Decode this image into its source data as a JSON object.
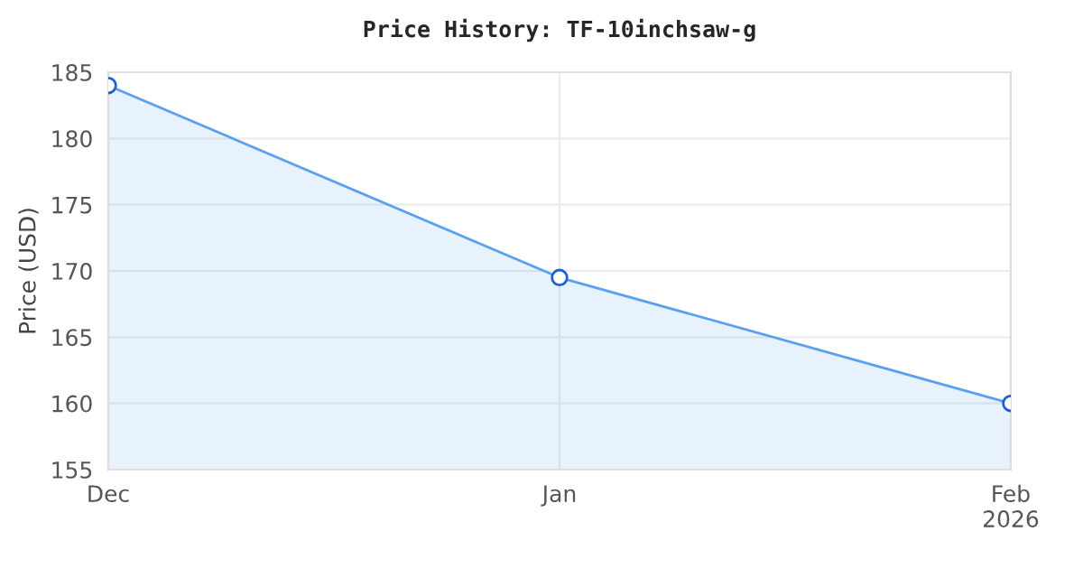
{
  "chart_data": {
    "type": "area",
    "title": "Price History: TF-10inchsaw-g",
    "ylabel": "Price (USD)",
    "x": [
      "2025-12-01",
      "2026-01-01",
      "2026-02-01"
    ],
    "series": [
      {
        "color": "#5aa0f0",
        "values": [
          184,
          169.5,
          160
        ]
      }
    ],
    "xlim": [
      "2025-12-01",
      "2026-02-01"
    ],
    "xticks": [
      {
        "value": "2025-12-01",
        "label": "Dec"
      },
      {
        "value": "2026-01-01",
        "label": "Jan"
      },
      {
        "value": "2026-02-01",
        "label": "Feb\n2026"
      }
    ],
    "ylim": [
      155,
      185
    ],
    "yticks": [
      155,
      160,
      165,
      170,
      175,
      180,
      185
    ],
    "grid": true,
    "marker": "circle",
    "line_style": "solid"
  }
}
